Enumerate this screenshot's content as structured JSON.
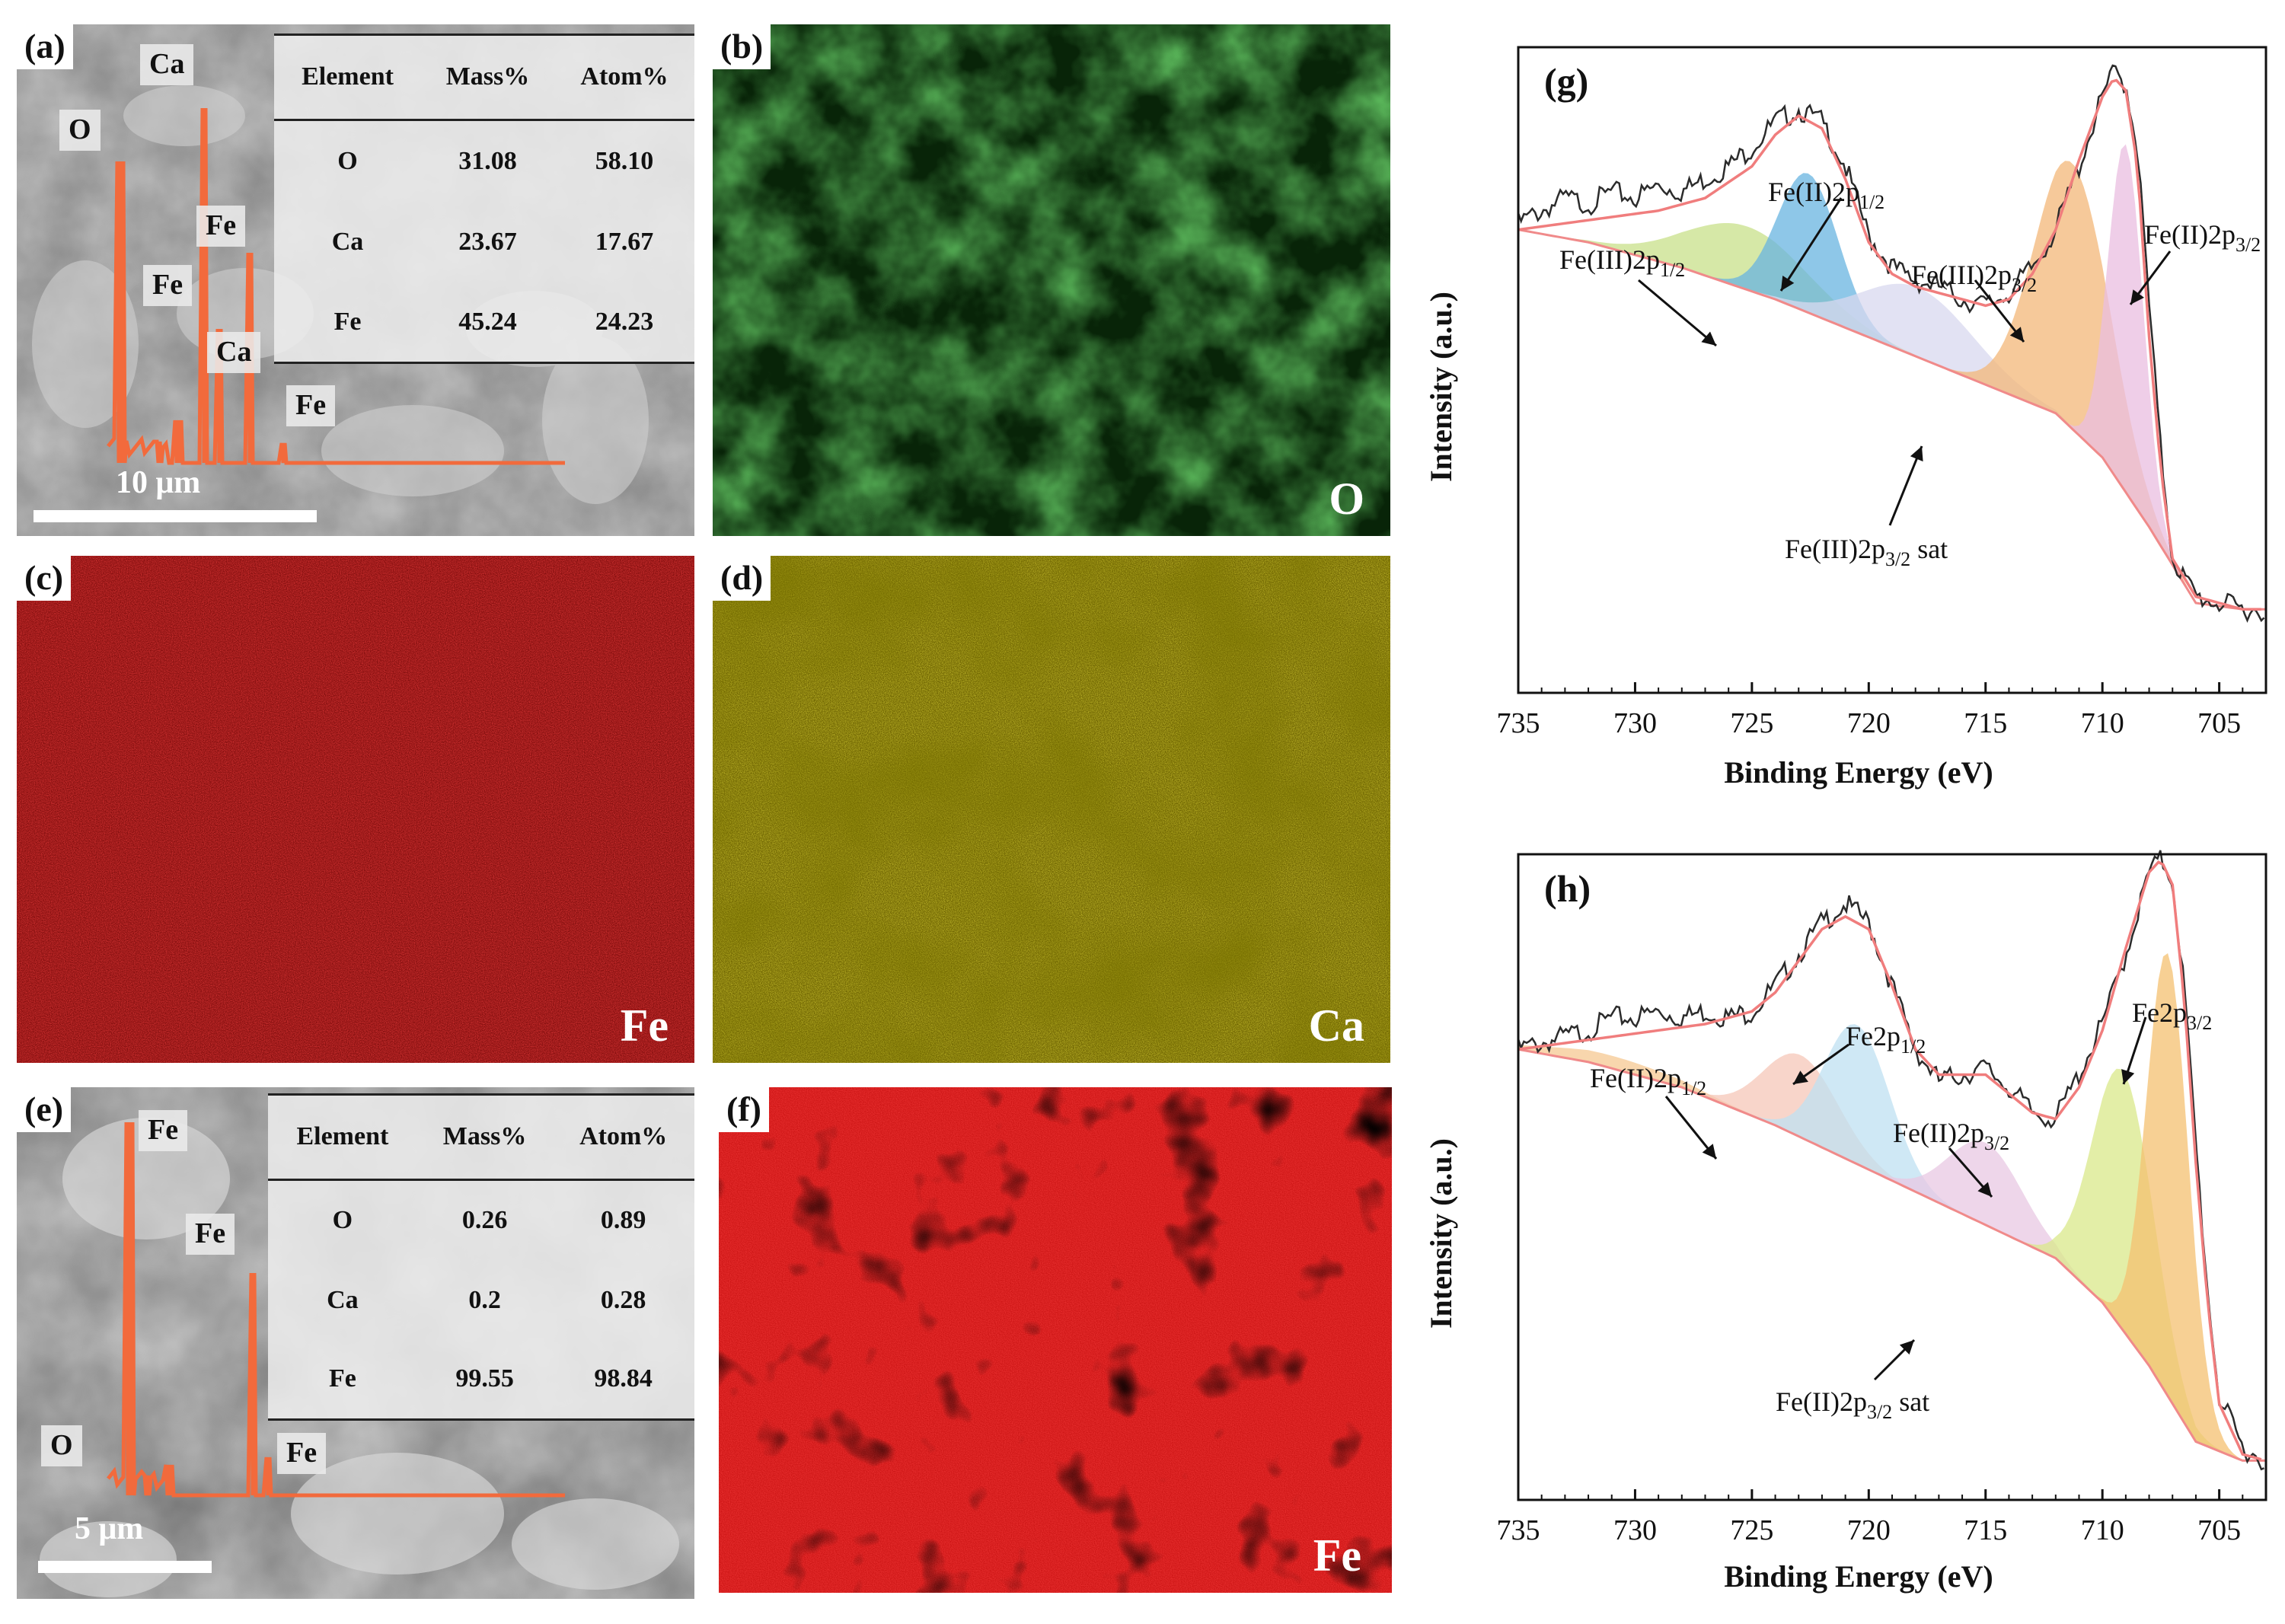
{
  "panels": {
    "a": {
      "tag": "(a)",
      "peak_labels": [
        "Ca",
        "O",
        "Fe",
        "Fe",
        "Ca",
        "Fe"
      ],
      "table": {
        "headers": [
          "Element",
          "Mass%",
          "Atom%"
        ],
        "rows": [
          [
            "O",
            "31.08",
            "58.10"
          ],
          [
            "Ca",
            "23.67",
            "17.67"
          ],
          [
            "Fe",
            "45.24",
            "24.23"
          ]
        ]
      },
      "scale": "10 μm"
    },
    "b": {
      "tag": "(b)",
      "element": "O",
      "color": "#1f7a1f"
    },
    "c": {
      "tag": "(c)",
      "element": "Fe",
      "color": "#d01010"
    },
    "d": {
      "tag": "(d)",
      "element": "Ca",
      "color": "#c8b800"
    },
    "e": {
      "tag": "(e)",
      "peak_labels": [
        "Fe",
        "Fe",
        "O",
        "Fe"
      ],
      "table": {
        "headers": [
          "Element",
          "Mass%",
          "Atom%"
        ],
        "rows": [
          [
            "O",
            "0.26",
            "0.89"
          ],
          [
            "Ca",
            "0.2",
            "0.28"
          ],
          [
            "Fe",
            "99.55",
            "98.84"
          ]
        ]
      },
      "scale": "5 μm"
    },
    "f": {
      "tag": "(f)",
      "element": "Fe",
      "color": "#e01010"
    }
  },
  "chart_data": [
    {
      "type": "line",
      "panel": "(g)",
      "xlabel": "Binding Energy (eV)",
      "ylabel": "Intensity (a.u.)",
      "xlim": [
        735,
        703
      ],
      "x_ticks": [
        735,
        730,
        725,
        720,
        715,
        710,
        705
      ],
      "ylim": [
        0,
        1
      ],
      "annotations": [
        {
          "html": "Fe(III)2p<sub>1/2</sub>"
        },
        {
          "html": "Fe(II)2p<sub>1/2</sub>"
        },
        {
          "html": "Fe(III)2p<sub>3/2</sub>"
        },
        {
          "html": "Fe(II)2p<sub>3/2</sub>"
        },
        {
          "html": "Fe(III)2p<sub>3/2</sub> sat"
        }
      ],
      "background_curve": {
        "x": [
          735,
          732,
          728,
          724,
          720,
          716,
          712,
          710,
          708,
          706,
          704,
          703
        ],
        "y": [
          0.72,
          0.7,
          0.66,
          0.61,
          0.55,
          0.49,
          0.43,
          0.36,
          0.25,
          0.13,
          0.12,
          0.12
        ]
      },
      "fitted_peaks": [
        {
          "center": 725.2,
          "amp": 0.1,
          "width": 2.6,
          "color": "#c8e08a"
        },
        {
          "center": 722.6,
          "amp": 0.22,
          "width": 1.3,
          "color": "#68b4e0"
        },
        {
          "center": 717.9,
          "amp": 0.11,
          "width": 2.4,
          "color": "#d8d8ef"
        },
        {
          "center": 711.3,
          "amp": 0.42,
          "width": 1.6,
          "color": "#f3b778"
        },
        {
          "center": 709.0,
          "amp": 0.55,
          "width": 0.75,
          "color": "#eabde0"
        }
      ],
      "raw_curve": {
        "x": [
          735,
          734,
          733,
          732,
          731,
          730,
          729,
          728,
          727,
          726,
          725,
          724,
          723,
          722,
          721,
          720,
          719,
          718,
          717,
          716,
          715,
          714,
          713,
          712,
          711,
          710,
          709.5,
          709,
          708.5,
          708,
          707.5,
          707,
          706,
          705,
          704,
          703
        ],
        "y": [
          0.73,
          0.75,
          0.77,
          0.76,
          0.78,
          0.77,
          0.79,
          0.78,
          0.8,
          0.82,
          0.85,
          0.89,
          0.91,
          0.89,
          0.82,
          0.71,
          0.66,
          0.64,
          0.63,
          0.61,
          0.6,
          0.62,
          0.66,
          0.72,
          0.82,
          0.93,
          0.97,
          0.95,
          0.85,
          0.6,
          0.37,
          0.2,
          0.14,
          0.13,
          0.12,
          0.12
        ]
      },
      "envelope_curve": {
        "x": [
          735,
          733,
          731,
          729,
          727,
          725,
          724,
          723,
          722,
          721,
          720,
          719,
          718,
          717,
          716,
          715,
          714,
          713,
          712,
          711,
          710,
          709.5,
          709,
          708.5,
          708,
          707.5,
          707,
          706,
          705,
          704,
          703
        ],
        "y": [
          0.72,
          0.73,
          0.74,
          0.75,
          0.77,
          0.82,
          0.87,
          0.9,
          0.88,
          0.8,
          0.7,
          0.65,
          0.63,
          0.62,
          0.61,
          0.6,
          0.61,
          0.65,
          0.72,
          0.83,
          0.93,
          0.96,
          0.94,
          0.82,
          0.55,
          0.34,
          0.2,
          0.14,
          0.13,
          0.12,
          0.12
        ]
      }
    },
    {
      "type": "line",
      "panel": "(h)",
      "xlabel": "Binding Energy (eV)",
      "ylabel": "Intensity (a.u.)",
      "xlim": [
        735,
        703
      ],
      "x_ticks": [
        735,
        730,
        725,
        720,
        715,
        710,
        705
      ],
      "ylim": [
        0,
        1
      ],
      "annotations": [
        {
          "html": "Fe(II)2p<sub>1/2</sub>"
        },
        {
          "html": "Fe2p<sub>1/2</sub>"
        },
        {
          "html": "Fe(II)2p<sub>3/2</sub>"
        },
        {
          "html": "Fe2p<sub>3/2</sub>"
        },
        {
          "html": "Fe(II)2p<sub>3/2</sub> sat"
        }
      ],
      "background_curve": {
        "x": [
          735,
          732,
          728,
          724,
          720,
          716,
          712,
          710,
          708,
          706,
          704,
          703
        ],
        "y": [
          0.7,
          0.68,
          0.64,
          0.58,
          0.51,
          0.44,
          0.37,
          0.3,
          0.2,
          0.08,
          0.05,
          0.05
        ]
      },
      "fitted_peaks": [
        {
          "center": 731.0,
          "amp": 0.02,
          "width": 2.8,
          "color": "#f5c891"
        },
        {
          "center": 722.9,
          "amp": 0.13,
          "width": 1.6,
          "color": "#f6c7b8"
        },
        {
          "center": 720.5,
          "amp": 0.22,
          "width": 1.4,
          "color": "#bfe0f2"
        },
        {
          "center": 715.0,
          "amp": 0.13,
          "width": 1.6,
          "color": "#e8c8e3"
        },
        {
          "center": 709.1,
          "amp": 0.41,
          "width": 1.3,
          "color": "#d9e88a"
        },
        {
          "center": 707.2,
          "amp": 0.7,
          "width": 0.9,
          "color": "#f4c070"
        }
      ],
      "raw_curve": {
        "x": [
          735,
          734,
          733,
          732,
          731,
          730,
          729,
          728,
          727,
          726,
          725,
          724,
          723,
          722,
          721,
          720,
          719,
          718,
          717,
          716,
          715,
          714,
          713,
          712,
          711,
          710,
          709,
          708,
          707.5,
          707,
          706.5,
          706,
          705.5,
          705,
          704,
          703
        ],
        "y": [
          0.7,
          0.71,
          0.72,
          0.73,
          0.75,
          0.75,
          0.76,
          0.75,
          0.76,
          0.75,
          0.76,
          0.8,
          0.85,
          0.9,
          0.93,
          0.9,
          0.8,
          0.7,
          0.65,
          0.66,
          0.67,
          0.64,
          0.6,
          0.59,
          0.66,
          0.74,
          0.85,
          0.98,
          1.0,
          0.97,
          0.8,
          0.55,
          0.32,
          0.15,
          0.07,
          0.05
        ]
      },
      "envelope_curve": {
        "x": [
          735,
          733,
          731,
          729,
          727,
          725,
          724,
          723,
          722,
          721,
          720,
          719,
          718,
          717,
          716,
          715,
          714,
          713,
          712,
          711,
          710,
          709,
          708,
          707.5,
          707,
          706.5,
          706,
          705.5,
          705,
          704,
          703
        ],
        "y": [
          0.7,
          0.71,
          0.72,
          0.73,
          0.74,
          0.76,
          0.79,
          0.84,
          0.89,
          0.91,
          0.89,
          0.8,
          0.7,
          0.66,
          0.66,
          0.66,
          0.63,
          0.6,
          0.59,
          0.64,
          0.73,
          0.86,
          0.98,
          1.0,
          0.96,
          0.78,
          0.52,
          0.3,
          0.14,
          0.06,
          0.05
        ]
      }
    }
  ]
}
